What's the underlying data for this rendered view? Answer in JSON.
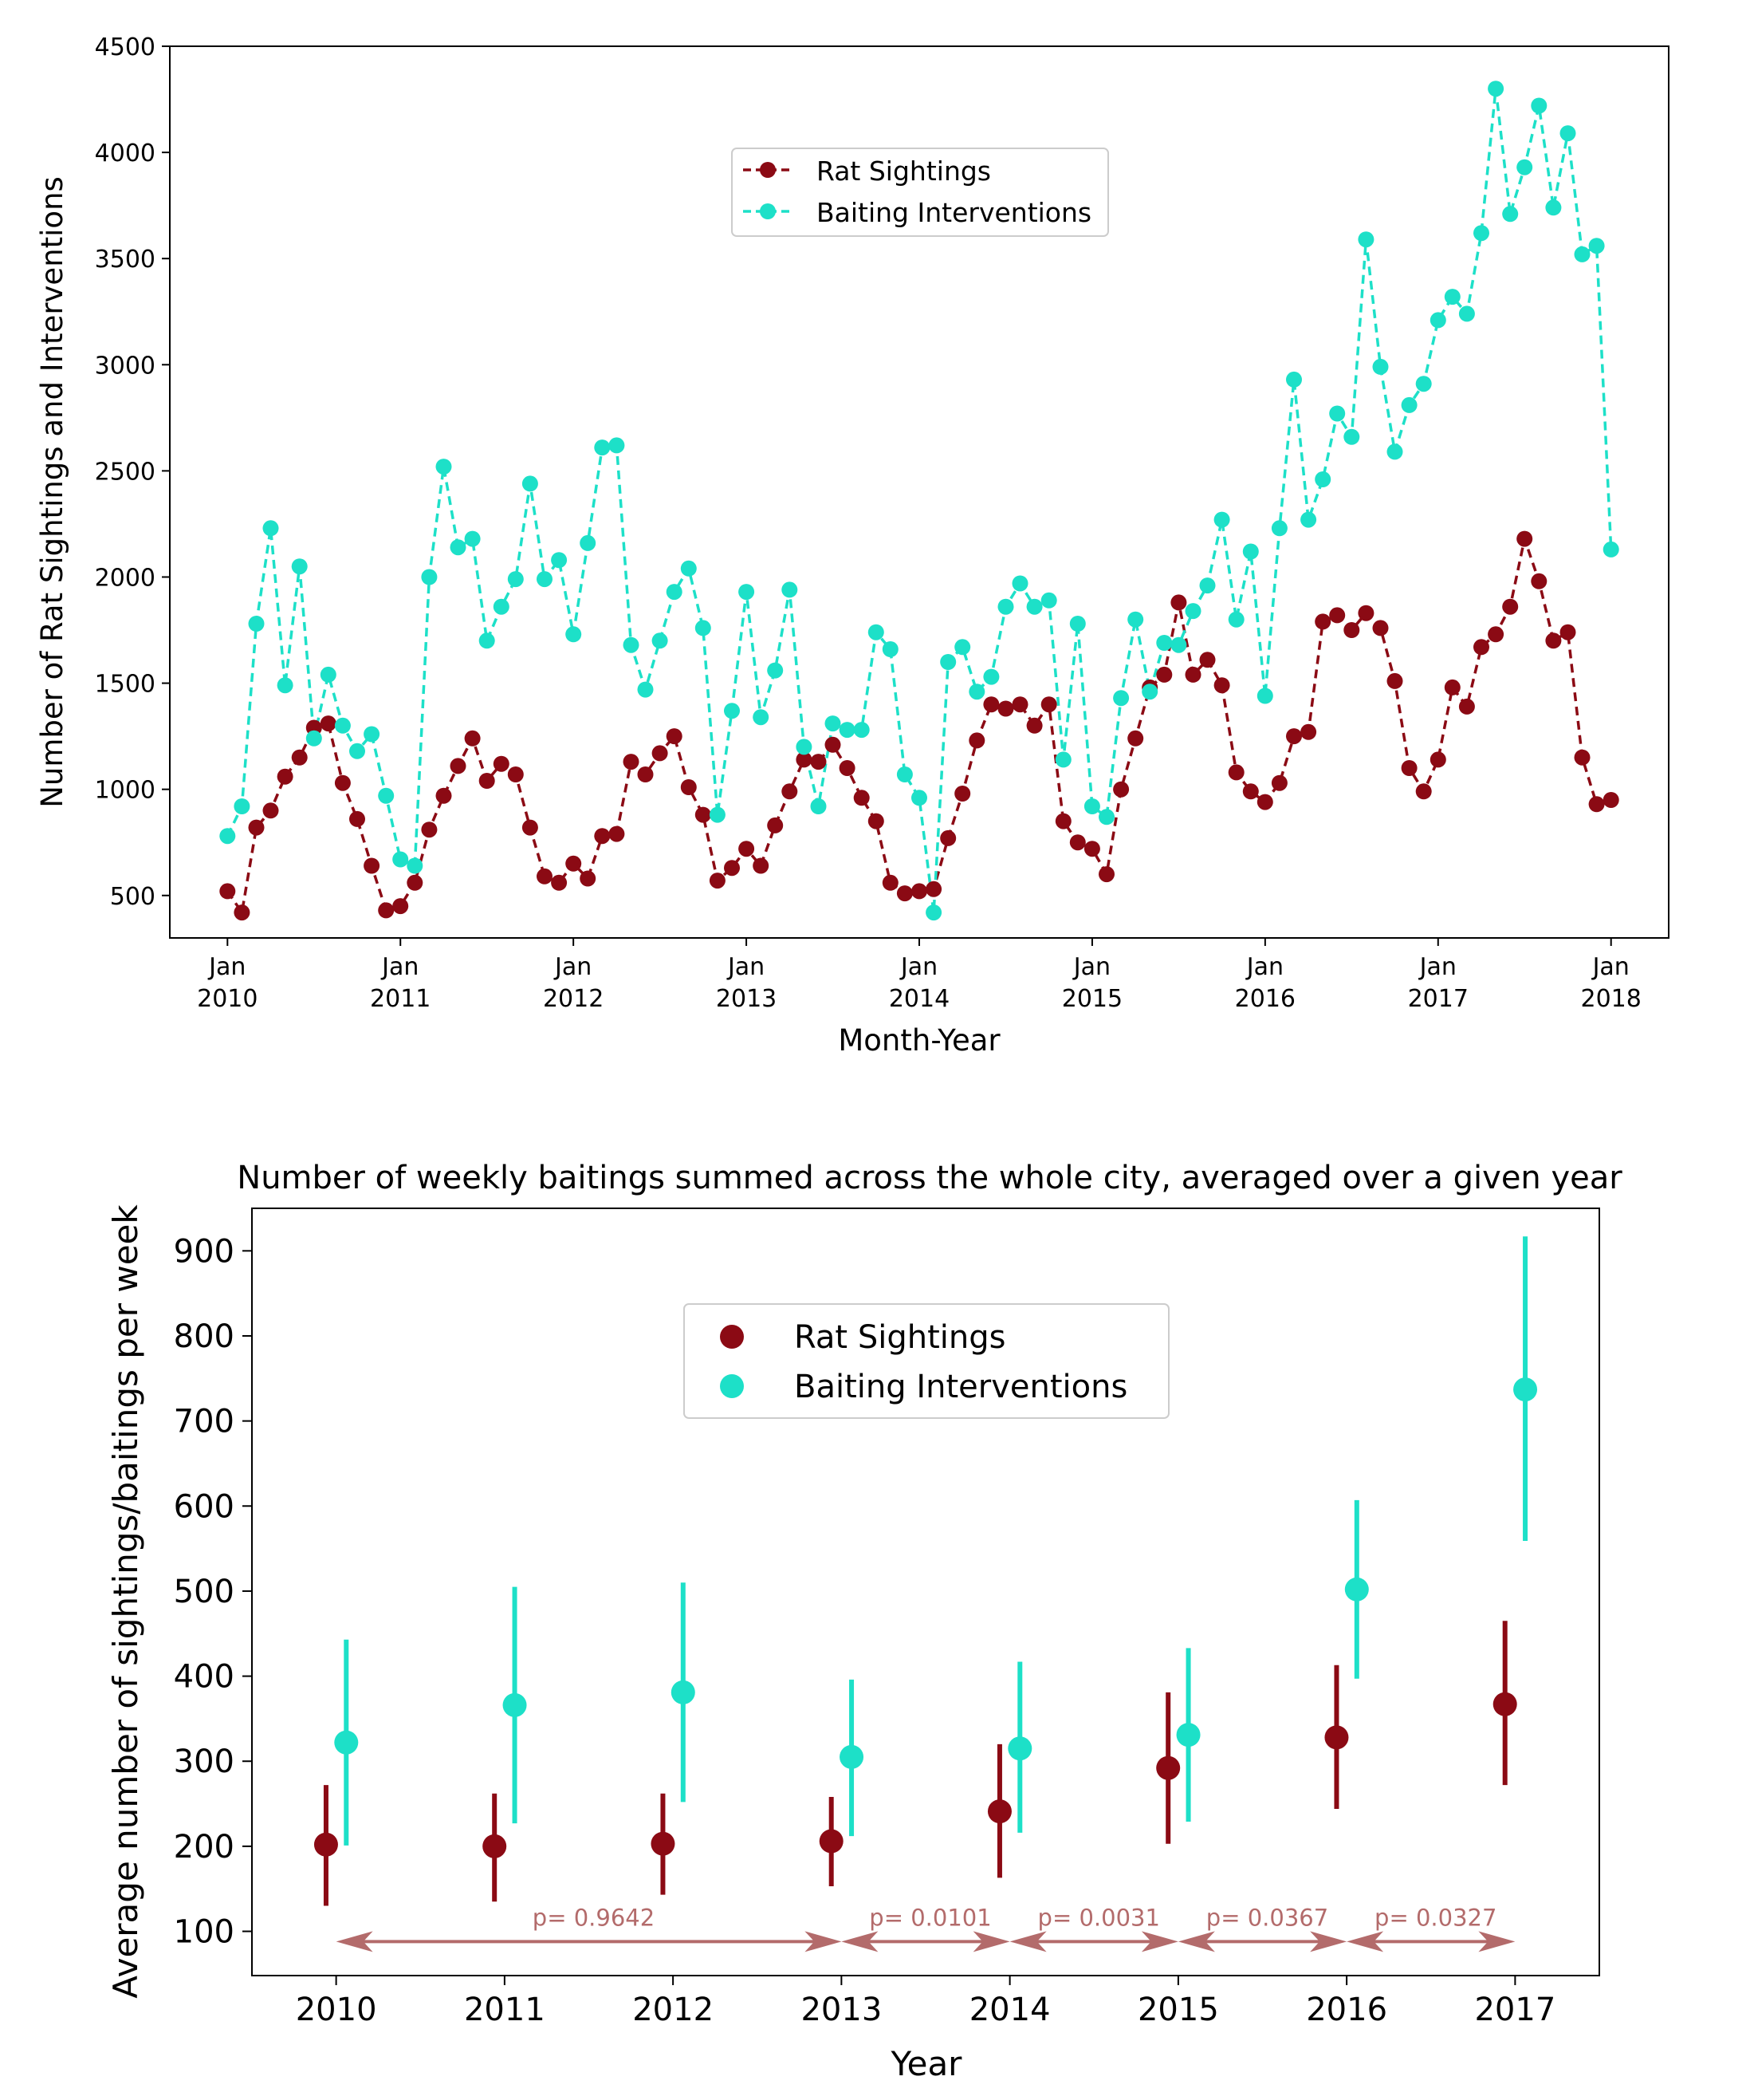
{
  "chart_data": [
    {
      "type": "line",
      "title": "",
      "xlabel": "Month-Year",
      "ylabel": "Number of Rat Sightings and Interventions",
      "ylim": [
        300,
        4500
      ],
      "yticks": [
        500,
        1000,
        1500,
        2000,
        2500,
        3000,
        3500,
        4000,
        4500
      ],
      "xlim_months": [
        -4,
        100
      ],
      "xticks": [
        {
          "month": 0,
          "line1": "Jan",
          "line2": "2010"
        },
        {
          "month": 12,
          "line1": "Jan",
          "line2": "2011"
        },
        {
          "month": 24,
          "line1": "Jan",
          "line2": "2012"
        },
        {
          "month": 36,
          "line1": "Jan",
          "line2": "2013"
        },
        {
          "month": 48,
          "line1": "Jan",
          "line2": "2014"
        },
        {
          "month": 60,
          "line1": "Jan",
          "line2": "2015"
        },
        {
          "month": 72,
          "line1": "Jan",
          "line2": "2016"
        },
        {
          "month": 84,
          "line1": "Jan",
          "line2": "2017"
        },
        {
          "month": 96,
          "line1": "Jan",
          "line2": "2018"
        }
      ],
      "legend": {
        "position": "upper-center"
      },
      "series": [
        {
          "name": "Rat Sightings",
          "color": "#8b0a14",
          "values": [
            520,
            420,
            820,
            900,
            1060,
            1150,
            1290,
            1310,
            1030,
            860,
            640,
            430,
            450,
            560,
            810,
            970,
            1110,
            1240,
            1040,
            1120,
            1070,
            820,
            590,
            560,
            650,
            580,
            780,
            790,
            1130,
            1070,
            1170,
            1250,
            1010,
            880,
            570,
            630,
            720,
            640,
            830,
            990,
            1140,
            1130,
            1210,
            1100,
            960,
            850,
            560,
            510,
            520,
            530,
            770,
            980,
            1230,
            1400,
            1380,
            1400,
            1300,
            1400,
            850,
            750,
            720,
            600,
            1000,
            1240,
            1480,
            1540,
            1880,
            1540,
            1610,
            1490,
            1080,
            990,
            940,
            1030,
            1250,
            1270,
            1790,
            1820,
            1750,
            1830,
            1760,
            1510,
            1100,
            990,
            1140,
            1480,
            1390,
            1670,
            1730,
            1860,
            2180,
            1980,
            1700,
            1740,
            1150,
            930,
            950
          ]
        },
        {
          "name": "Baiting Interventions",
          "color": "#1de0c8",
          "values": [
            780,
            920,
            1780,
            2230,
            1490,
            2050,
            1240,
            1540,
            1300,
            1180,
            1260,
            970,
            670,
            640,
            2000,
            2520,
            2140,
            2180,
            1700,
            1860,
            1990,
            2440,
            1990,
            2080,
            1730,
            2160,
            2610,
            2620,
            1680,
            1470,
            1700,
            1930,
            2040,
            1760,
            880,
            1370,
            1930,
            1340,
            1560,
            1940,
            1200,
            920,
            1310,
            1280,
            1280,
            1740,
            1660,
            1070,
            960,
            420,
            1600,
            1670,
            1460,
            1530,
            1860,
            1970,
            1860,
            1890,
            1140,
            1780,
            920,
            870,
            1430,
            1800,
            1460,
            1690,
            1680,
            1840,
            1960,
            2270,
            1800,
            2120,
            1440,
            2230,
            2930,
            2270,
            2460,
            2770,
            2660,
            3590,
            2990,
            2590,
            2810,
            2910,
            3210,
            3320,
            3240,
            3620,
            4300,
            3710,
            3930,
            4220,
            3740,
            4090,
            3520,
            3560,
            2130
          ]
        }
      ]
    },
    {
      "type": "scatter",
      "title": "Number of weekly baitings summed across the whole city, averaged over a given year",
      "xlabel": "Year",
      "ylabel": "Average number of sightings/baitings per week",
      "ylim": [
        48,
        950
      ],
      "xlim": [
        2009.5,
        2017.5
      ],
      "yticks": [
        100,
        200,
        300,
        400,
        500,
        600,
        700,
        800,
        900
      ],
      "xticks": [
        "2010",
        "2011",
        "2012",
        "2013",
        "2014",
        "2015",
        "2016",
        "2017"
      ],
      "legend": {
        "position": "upper-center"
      },
      "series": [
        {
          "name": "Rat Sightings",
          "color": "#8b0a14",
          "x": [
            2010,
            2011,
            2012,
            2013,
            2014,
            2015,
            2016,
            2017
          ],
          "values": [
            202,
            200,
            203,
            206,
            241,
            292,
            328,
            367
          ],
          "err_low": [
            130,
            135,
            143,
            153,
            163,
            203,
            244,
            272
          ],
          "err_high": [
            272,
            262,
            262,
            258,
            320,
            381,
            413,
            465
          ]
        },
        {
          "name": "Baiting Interventions",
          "color": "#1de0c8",
          "x": [
            2010,
            2011,
            2012,
            2013,
            2014,
            2015,
            2016,
            2017
          ],
          "values": [
            322,
            366,
            381,
            305,
            315,
            331,
            502,
            737
          ],
          "err_low": [
            201,
            227,
            252,
            212,
            216,
            229,
            397,
            559
          ],
          "err_high": [
            443,
            505,
            510,
            396,
            417,
            433,
            607,
            917
          ]
        }
      ],
      "annotations": {
        "color": "#b36b6b",
        "y": 88,
        "arrows": [
          {
            "from": 2010,
            "to": 2013,
            "label": "p= 0.9642"
          },
          {
            "from": 2013,
            "to": 2014,
            "label": "p= 0.0101"
          },
          {
            "from": 2014,
            "to": 2015,
            "label": "p= 0.0031"
          },
          {
            "from": 2015,
            "to": 2016,
            "label": "p= 0.0367"
          },
          {
            "from": 2016,
            "to": 2017,
            "label": "p= 0.0327"
          }
        ]
      }
    }
  ]
}
